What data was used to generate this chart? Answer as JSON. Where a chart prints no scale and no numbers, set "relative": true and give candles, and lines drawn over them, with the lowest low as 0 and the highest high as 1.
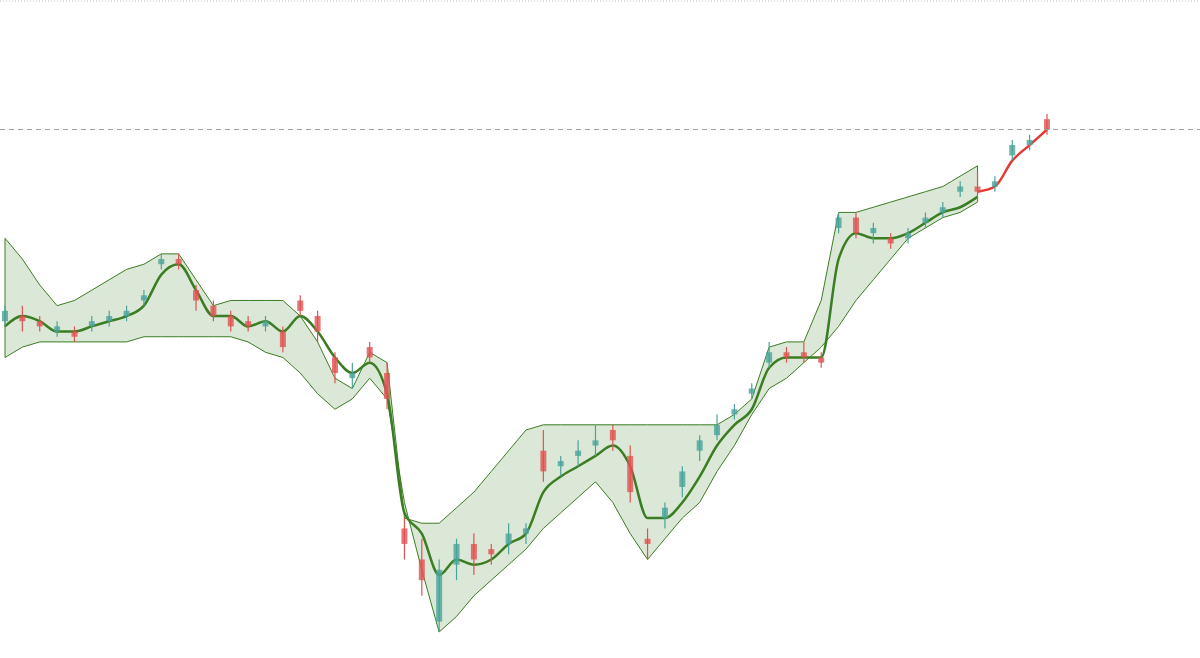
{
  "chart_data": {
    "type": "candlestick",
    "relative": true,
    "categories": [
      null,
      null,
      null,
      null,
      null,
      null,
      null,
      null,
      null,
      null,
      null,
      null,
      null,
      null,
      null,
      null,
      null,
      null,
      null,
      null,
      null,
      null,
      null,
      null,
      null,
      null,
      null,
      null,
      null,
      null,
      null,
      null,
      null,
      null,
      null,
      null,
      null,
      null,
      null,
      null,
      null,
      null,
      null,
      null,
      null,
      null,
      null,
      null,
      null,
      null,
      null,
      null,
      null,
      null,
      null,
      null,
      null,
      null,
      null,
      null,
      null
    ],
    "ohlc": [
      [
        0.6,
        0.63,
        0.59,
        0.62
      ],
      [
        0.61,
        0.63,
        0.58,
        0.6
      ],
      [
        0.6,
        0.61,
        0.58,
        0.59
      ],
      [
        0.58,
        0.6,
        0.57,
        0.59
      ],
      [
        0.58,
        0.59,
        0.56,
        0.57
      ],
      [
        0.59,
        0.61,
        0.58,
        0.6
      ],
      [
        0.6,
        0.62,
        0.59,
        0.61
      ],
      [
        0.61,
        0.63,
        0.6,
        0.62
      ],
      [
        0.64,
        0.66,
        0.63,
        0.65
      ],
      [
        0.71,
        0.73,
        0.7,
        0.72
      ],
      [
        0.72,
        0.73,
        0.7,
        0.71
      ],
      [
        0.66,
        0.67,
        0.62,
        0.64
      ],
      [
        0.63,
        0.64,
        0.6,
        0.61
      ],
      [
        0.61,
        0.62,
        0.58,
        0.59
      ],
      [
        0.6,
        0.61,
        0.58,
        0.59
      ],
      [
        0.59,
        0.61,
        0.58,
        0.6
      ],
      [
        0.58,
        0.59,
        0.54,
        0.55
      ],
      [
        0.64,
        0.65,
        0.61,
        0.62
      ],
      [
        0.61,
        0.62,
        0.56,
        0.58
      ],
      [
        0.53,
        0.54,
        0.48,
        0.5
      ],
      [
        0.49,
        0.52,
        0.47,
        0.5
      ],
      [
        0.55,
        0.56,
        0.52,
        0.53
      ],
      [
        0.5,
        0.52,
        0.43,
        0.45
      ],
      [
        0.2,
        0.22,
        0.14,
        0.17
      ],
      [
        0.14,
        0.18,
        0.07,
        0.1
      ],
      [
        0.02,
        0.14,
        0,
        0.12
      ],
      [
        0.13,
        0.18,
        0.1,
        0.17
      ],
      [
        0.17,
        0.19,
        0.11,
        0.14
      ],
      [
        0.16,
        0.17,
        0.13,
        0.15
      ],
      [
        0.17,
        0.21,
        0.15,
        0.19
      ],
      [
        0.19,
        0.21,
        0.17,
        0.2
      ],
      [
        0.35,
        0.39,
        0.29,
        0.31
      ],
      [
        0.32,
        0.34,
        0.3,
        0.33
      ],
      [
        0.34,
        0.37,
        0.32,
        0.35
      ],
      [
        0.36,
        0.4,
        0.34,
        0.37
      ],
      [
        0.39,
        0.4,
        0.35,
        0.37
      ],
      [
        0.34,
        0.36,
        0.25,
        0.27
      ],
      [
        0.18,
        0.2,
        0.14,
        0.17
      ],
      [
        0.22,
        0.25,
        0.2,
        0.24
      ],
      [
        0.28,
        0.32,
        0.26,
        0.31
      ],
      [
        0.35,
        0.38,
        0.33,
        0.37
      ],
      [
        0.38,
        0.42,
        0.37,
        0.4
      ],
      [
        0.42,
        0.44,
        0.41,
        0.43
      ],
      [
        0.46,
        0.48,
        0.45,
        0.47
      ],
      [
        0.52,
        0.56,
        0.51,
        0.54
      ],
      [
        0.54,
        0.55,
        0.52,
        0.53
      ],
      [
        0.54,
        0.56,
        0.52,
        0.53
      ],
      [
        0.53,
        0.54,
        0.51,
        0.52
      ],
      [
        0.78,
        0.81,
        0.77,
        0.8
      ],
      [
        0.8,
        0.81,
        0.76,
        0.77
      ],
      [
        0.77,
        0.79,
        0.75,
        0.78
      ],
      [
        0.76,
        0.77,
        0.74,
        0.75
      ],
      [
        0.76,
        0.78,
        0.75,
        0.77
      ],
      [
        0.79,
        0.81,
        0.78,
        0.8
      ],
      [
        0.81,
        0.83,
        0.8,
        0.82
      ],
      [
        0.85,
        0.87,
        0.84,
        0.86
      ],
      [
        0.86,
        0.89,
        0.83,
        0.85
      ],
      [
        0.86,
        0.88,
        0.85,
        0.87
      ],
      [
        0.92,
        0.95,
        0.91,
        0.94
      ],
      [
        0.94,
        0.96,
        0.93,
        0.95
      ],
      [
        0.99,
        1,
        0.96,
        0.97
      ]
    ],
    "series": [
      {
        "type": "line",
        "color": "#3a7d22",
        "values": [
          0.59,
          0.61,
          0.6,
          0.58,
          0.58,
          0.59,
          0.6,
          0.61,
          0.63,
          0.69,
          0.71,
          0.66,
          0.61,
          0.61,
          0.59,
          0.6,
          0.58,
          0.61,
          0.58,
          0.53,
          0.5,
          0.52,
          0.46,
          0.23,
          0.19,
          0.11,
          0.14,
          0.13,
          0.14,
          0.17,
          0.19,
          0.27,
          0.3,
          0.32,
          0.34,
          0.36,
          0.32,
          0.22,
          0.22,
          0.25,
          0.3,
          0.36,
          0.4,
          0.43,
          0.51,
          0.53,
          0.53,
          0.53,
          0.72,
          0.77,
          0.76,
          0.76,
          0.77,
          0.79,
          0.81,
          0.82,
          0.84,
          null,
          null,
          null,
          null
        ],
        "lower": [
          0.53,
          0.55,
          0.56,
          0.56,
          0.56,
          0.56,
          0.56,
          0.56,
          0.57,
          0.57,
          0.57,
          0.57,
          0.57,
          0.57,
          0.56,
          0.54,
          0.53,
          0.5,
          0.46,
          0.43,
          0.45,
          0.49,
          0.45,
          0.25,
          0.12,
          0,
          0.03,
          0.07,
          0.1,
          0.13,
          0.16,
          0.2,
          0.23,
          0.26,
          0.29,
          0.25,
          0.19,
          0.14,
          0.18,
          0.22,
          0.25,
          0.31,
          0.36,
          0.42,
          0.47,
          0.49,
          0.52,
          0.55,
          0.59,
          0.64,
          0.68,
          0.72,
          0.76,
          0.78,
          0.8,
          0.81,
          0.83,
          null,
          null,
          null,
          null
        ],
        "upper": [
          0.76,
          0.72,
          0.67,
          0.63,
          0.64,
          0.66,
          0.68,
          0.7,
          0.71,
          0.73,
          0.73,
          0.68,
          0.63,
          0.64,
          0.64,
          0.64,
          0.64,
          0.61,
          0.56,
          0.49,
          0.47,
          0.54,
          0.52,
          0.22,
          0.21,
          0.21,
          0.24,
          0.27,
          0.31,
          0.35,
          0.39,
          0.4,
          0.4,
          0.4,
          0.4,
          0.4,
          0.4,
          0.4,
          0.4,
          0.4,
          0.4,
          0.4,
          0.42,
          0.45,
          0.55,
          0.56,
          0.56,
          0.64,
          0.81,
          0.81,
          0.82,
          0.83,
          0.84,
          0.85,
          0.86,
          0.88,
          0.9,
          null,
          null,
          null,
          null
        ]
      },
      {
        "type": "line",
        "color": "#e53935",
        "values": [
          null,
          null,
          null,
          null,
          null,
          null,
          null,
          null,
          null,
          null,
          null,
          null,
          null,
          null,
          null,
          null,
          null,
          null,
          null,
          null,
          null,
          null,
          null,
          null,
          null,
          null,
          null,
          null,
          null,
          null,
          null,
          null,
          null,
          null,
          null,
          null,
          null,
          null,
          null,
          null,
          null,
          null,
          null,
          null,
          null,
          null,
          null,
          null,
          null,
          null,
          null,
          null,
          null,
          null,
          null,
          null,
          0.85,
          0.86,
          0.91,
          0.94,
          0.97
        ]
      }
    ],
    "ref_lines": [
      {
        "axis": "y",
        "value": 0.97,
        "color": "#9e9e9e",
        "line_style": "dashed"
      }
    ]
  }
}
